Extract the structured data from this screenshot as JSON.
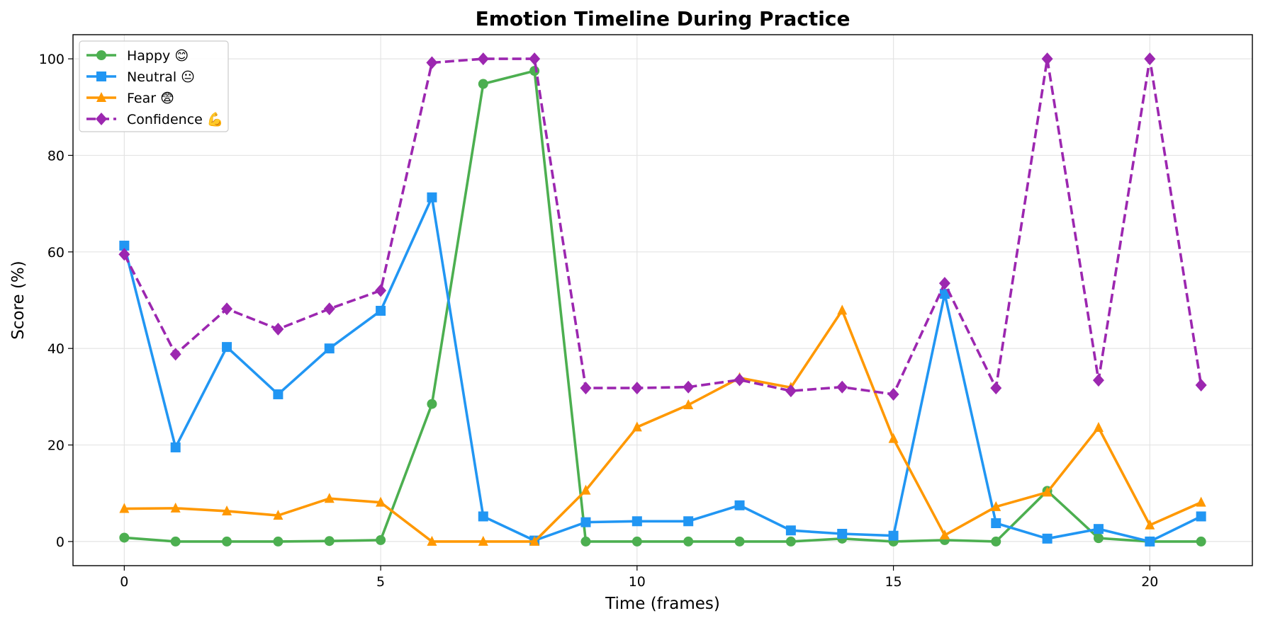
{
  "chart_data": {
    "type": "line",
    "title": "Emotion Timeline During Practice",
    "xlabel": "Time (frames)",
    "ylabel": "Score (%)",
    "xlim": [
      -1,
      22
    ],
    "ylim": [
      -5,
      105
    ],
    "xticks": [
      0,
      5,
      10,
      15,
      20
    ],
    "yticks": [
      0,
      20,
      40,
      60,
      80,
      100
    ],
    "grid": true,
    "legend_position": "top-left",
    "x": [
      0,
      1,
      2,
      3,
      4,
      5,
      6,
      7,
      8,
      9,
      10,
      11,
      12,
      13,
      14,
      15,
      16,
      17,
      18,
      19,
      20,
      21
    ],
    "series": [
      {
        "name": "Happy 😊",
        "color": "#4caf50",
        "marker": "circle",
        "line_style": "solid",
        "values": [
          0.8,
          0.0,
          0.0,
          0.0,
          0.1,
          0.3,
          28.5,
          94.8,
          97.5,
          0.0,
          0.0,
          0.0,
          0.0,
          0.0,
          0.6,
          0.0,
          0.3,
          0.0,
          10.5,
          0.7,
          0.0,
          0.0
        ]
      },
      {
        "name": "Neutral 😐",
        "color": "#2196f3",
        "marker": "square",
        "line_style": "solid",
        "values": [
          61.3,
          19.5,
          40.3,
          30.5,
          40.0,
          47.8,
          71.3,
          5.2,
          0.2,
          4.0,
          4.2,
          4.2,
          7.5,
          2.3,
          1.6,
          1.2,
          51.3,
          3.8,
          0.6,
          2.6,
          0.0,
          5.2
        ]
      },
      {
        "name": "Fear 😨",
        "color": "#ff9800",
        "marker": "triangle",
        "line_style": "solid",
        "values": [
          6.8,
          6.9,
          6.3,
          5.4,
          8.9,
          8.1,
          0.0,
          0.0,
          0.0,
          10.6,
          23.7,
          28.3,
          33.9,
          31.9,
          47.9,
          21.3,
          1.3,
          7.2,
          10.2,
          23.6,
          3.4,
          8.1
        ]
      },
      {
        "name": "Confidence 💪",
        "color": "#9c27b0",
        "marker": "diamond",
        "line_style": "dashed",
        "values": [
          59.5,
          38.8,
          48.2,
          44.0,
          48.2,
          52.0,
          99.2,
          100.0,
          100.0,
          31.8,
          31.8,
          32.0,
          33.5,
          31.2,
          32.0,
          30.5,
          53.5,
          31.8,
          100.0,
          33.4,
          100.0,
          32.4
        ]
      }
    ]
  }
}
